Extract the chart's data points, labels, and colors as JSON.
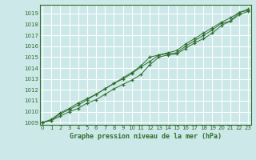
{
  "bg_color": "#cde8e8",
  "grid_color": "#ffffff",
  "line_color": "#2d6e2d",
  "xlabel": "Graphe pression niveau de la mer (hPa)",
  "ylim": [
    1008.8,
    1019.8
  ],
  "xlim": [
    -0.3,
    23.3
  ],
  "yticks": [
    1009,
    1010,
    1011,
    1012,
    1013,
    1014,
    1015,
    1016,
    1017,
    1018,
    1019
  ],
  "xticks": [
    0,
    1,
    2,
    3,
    4,
    5,
    6,
    7,
    8,
    9,
    10,
    11,
    12,
    13,
    14,
    15,
    16,
    17,
    18,
    19,
    20,
    21,
    22,
    23
  ],
  "series1": [
    1009.0,
    1009.2,
    1009.6,
    1010.0,
    1010.3,
    1010.8,
    1011.1,
    1011.6,
    1012.1,
    1012.5,
    1012.9,
    1013.4,
    1014.3,
    1015.0,
    1015.2,
    1015.3,
    1015.8,
    1016.3,
    1016.7,
    1017.2,
    1017.9,
    1018.3,
    1019.1,
    1019.3
  ],
  "series2": [
    1009.0,
    1009.2,
    1009.8,
    1010.2,
    1010.6,
    1011.1,
    1011.6,
    1012.1,
    1012.6,
    1013.0,
    1013.5,
    1014.1,
    1014.6,
    1015.2,
    1015.3,
    1015.4,
    1016.0,
    1016.5,
    1017.0,
    1017.5,
    1018.1,
    1018.3,
    1018.9,
    1019.2
  ],
  "series3": [
    1009.0,
    1009.3,
    1009.9,
    1010.3,
    1010.8,
    1011.2,
    1011.6,
    1012.1,
    1012.6,
    1013.1,
    1013.6,
    1014.2,
    1015.0,
    1015.2,
    1015.4,
    1015.6,
    1016.2,
    1016.7,
    1017.2,
    1017.7,
    1018.2,
    1018.6,
    1019.1,
    1019.4
  ]
}
